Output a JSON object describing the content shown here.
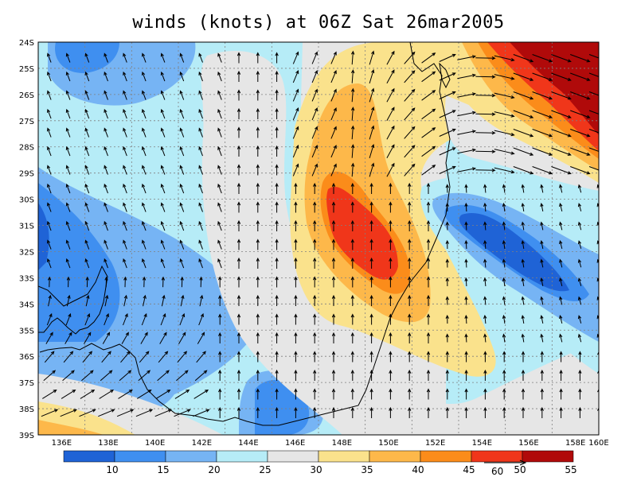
{
  "title": "winds (knots) at 06Z Sat 26mar2005",
  "lat_labels": [
    "24S",
    "25S",
    "26S",
    "27S",
    "28S",
    "29S",
    "30S",
    "31S",
    "32S",
    "33S",
    "34S",
    "35S",
    "36S",
    "37S",
    "38S",
    "39S"
  ],
  "lon_labels": [
    "136E",
    "138E",
    "140E",
    "142E",
    "144E",
    "146E",
    "148E",
    "150E",
    "152E",
    "154E",
    "156E",
    "158E",
    "160E"
  ],
  "colorbar": {
    "colors": [
      "#1f63d6",
      "#3f8ff0",
      "#76b4f4",
      "#b6ecf7",
      "#e6e6e6",
      "#fae28c",
      "#fdb84a",
      "#fb8c1a",
      "#f0361a",
      "#b00a0a"
    ],
    "labels": [
      "10",
      "15",
      "20",
      "25",
      "30",
      "35",
      "40",
      "45",
      "50",
      "55"
    ]
  },
  "reference_vector": {
    "label": "60"
  },
  "colors": {
    "c10": "#1f63d6",
    "c15": "#3f8ff0",
    "c20": "#76b4f4",
    "c25": "#b6ecf7",
    "c30": "#e6e6e6",
    "c35": "#fae28c",
    "c40": "#fdb84a",
    "c45": "#fb8c1a",
    "c50": "#f0361a",
    "c55": "#b00a0a"
  }
}
